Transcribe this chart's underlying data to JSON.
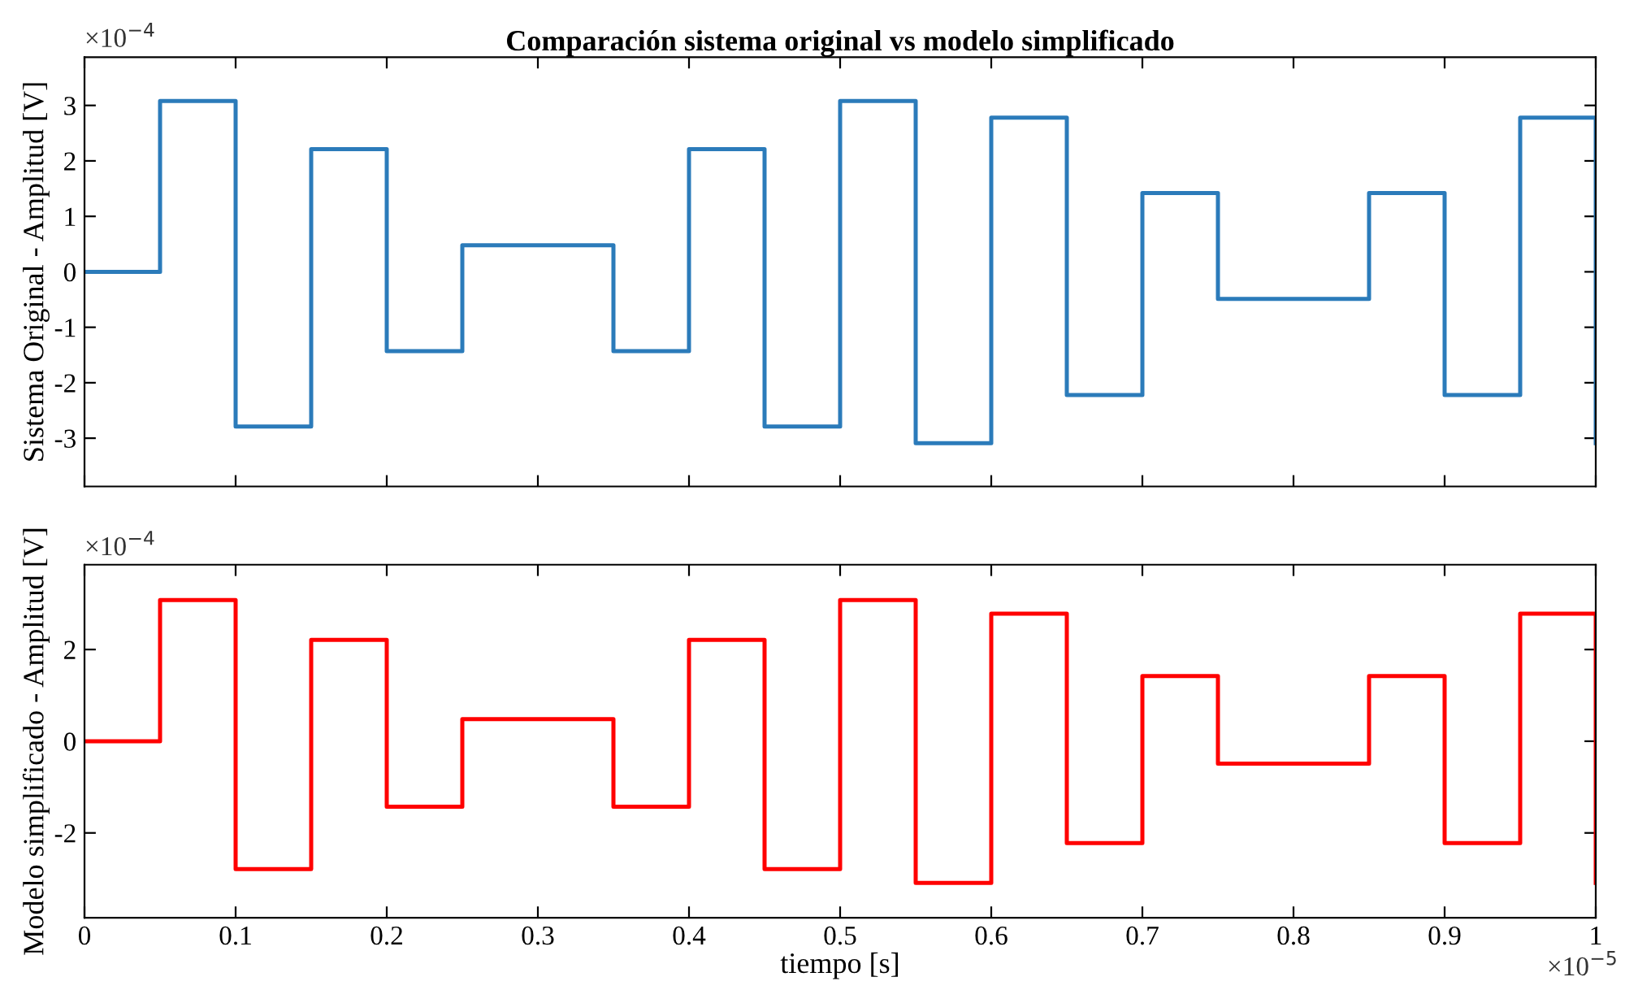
{
  "chart_data": [
    {
      "type": "step",
      "title": "Comparación sistema original vs modelo simplificado",
      "ylabel": "Sistema Original - Amplitud [V]",
      "annotations": [
        "×10$^{−4}$"
      ],
      "tick_labels": "y",
      "grid": false,
      "xlim": [
        0,
        1
      ],
      "xticks": [
        0,
        0.1,
        0.2,
        0.3,
        0.4,
        0.5,
        0.6,
        0.7,
        0.8,
        0.9,
        1
      ],
      "ylim": [
        -3.87,
        3.87
      ],
      "yticks": [
        -3,
        -2,
        -1,
        0,
        1,
        2,
        3
      ],
      "x": [
        0,
        0.05,
        0.1,
        0.15,
        0.2,
        0.25,
        0.3,
        0.35,
        0.4,
        0.45,
        0.5,
        0.55,
        0.6,
        0.65,
        0.7,
        0.75,
        0.8,
        0.85,
        0.9,
        0.95,
        1
      ],
      "series": [
        {
          "color": "#2b7bba",
          "values": [
            0,
            3.08,
            -2.79,
            2.21,
            -1.43,
            0.48,
            0.48,
            -1.43,
            2.21,
            -2.79,
            3.08,
            -3.09,
            2.78,
            -2.22,
            1.42,
            -0.49,
            -0.49,
            1.42,
            -2.22,
            2.78,
            -3.09
          ]
        }
      ]
    },
    {
      "type": "step",
      "xlabel": "tiempo [s]",
      "ylabel": "Modelo simplificado - Amplitud [V]",
      "annotations": [
        "×10$^{−4}$",
        "×10$^{−5}$"
      ],
      "grid": false,
      "xlim": [
        0,
        1
      ],
      "xticks": [
        0,
        0.1,
        0.2,
        0.3,
        0.4,
        0.5,
        0.6,
        0.7,
        0.8,
        0.9,
        1
      ],
      "ylim": [
        -3.85,
        3.85
      ],
      "yticks": [
        -2,
        0,
        2
      ],
      "x": [
        0,
        0.05,
        0.1,
        0.15,
        0.2,
        0.25,
        0.3,
        0.35,
        0.4,
        0.45,
        0.5,
        0.55,
        0.6,
        0.65,
        0.7,
        0.75,
        0.8,
        0.85,
        0.9,
        0.95,
        1
      ],
      "series": [
        {
          "color": "#ff0000",
          "values": [
            0,
            3.08,
            -2.79,
            2.21,
            -1.43,
            0.48,
            0.48,
            -1.43,
            2.21,
            -2.79,
            3.08,
            -3.09,
            2.78,
            -2.22,
            1.42,
            -0.49,
            -0.49,
            1.42,
            -2.22,
            2.78,
            -3.09
          ]
        }
      ]
    }
  ]
}
